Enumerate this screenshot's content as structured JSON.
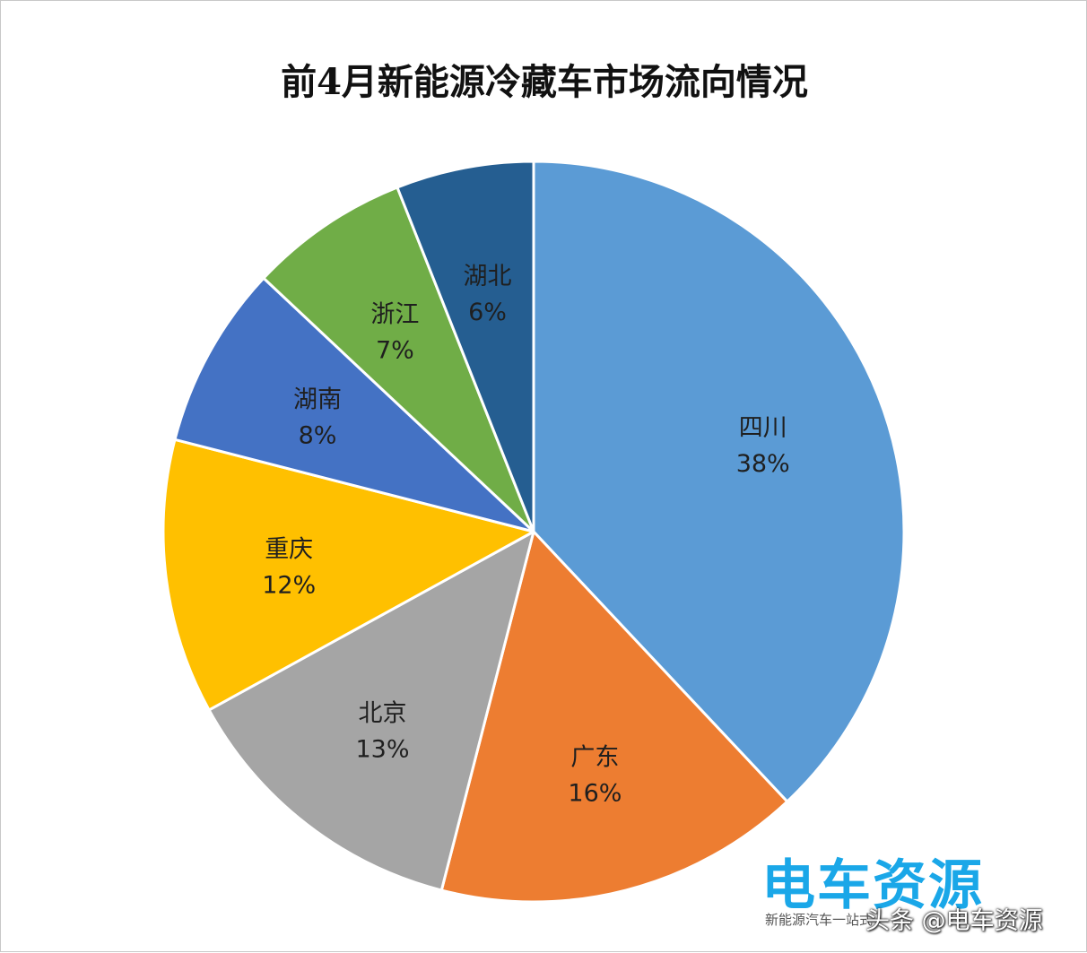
{
  "chart_data": {
    "type": "pie",
    "title": "前4月新能源冷藏车市场流向情况",
    "categories": [
      "四川",
      "广东",
      "北京",
      "重庆",
      "湖南",
      "浙江",
      "湖北"
    ],
    "values": [
      38,
      16,
      13,
      12,
      8,
      7,
      6
    ],
    "value_labels": [
      "38%",
      "16%",
      "13%",
      "12%",
      "8%",
      "7%",
      "6%"
    ],
    "colors": [
      "#5b9bd5",
      "#ed7d31",
      "#a5a5a5",
      "#ffc000",
      "#4472c4",
      "#70ad47",
      "#255e91"
    ],
    "start_angle": "12 o'clock",
    "direction": "clockwise",
    "legend": "none",
    "data_labels": "inside slices"
  },
  "watermark": {
    "logo_text": "电车资源",
    "logo_subtitle": "新能源汽车一站式",
    "credit": "头条 @电车资源"
  }
}
